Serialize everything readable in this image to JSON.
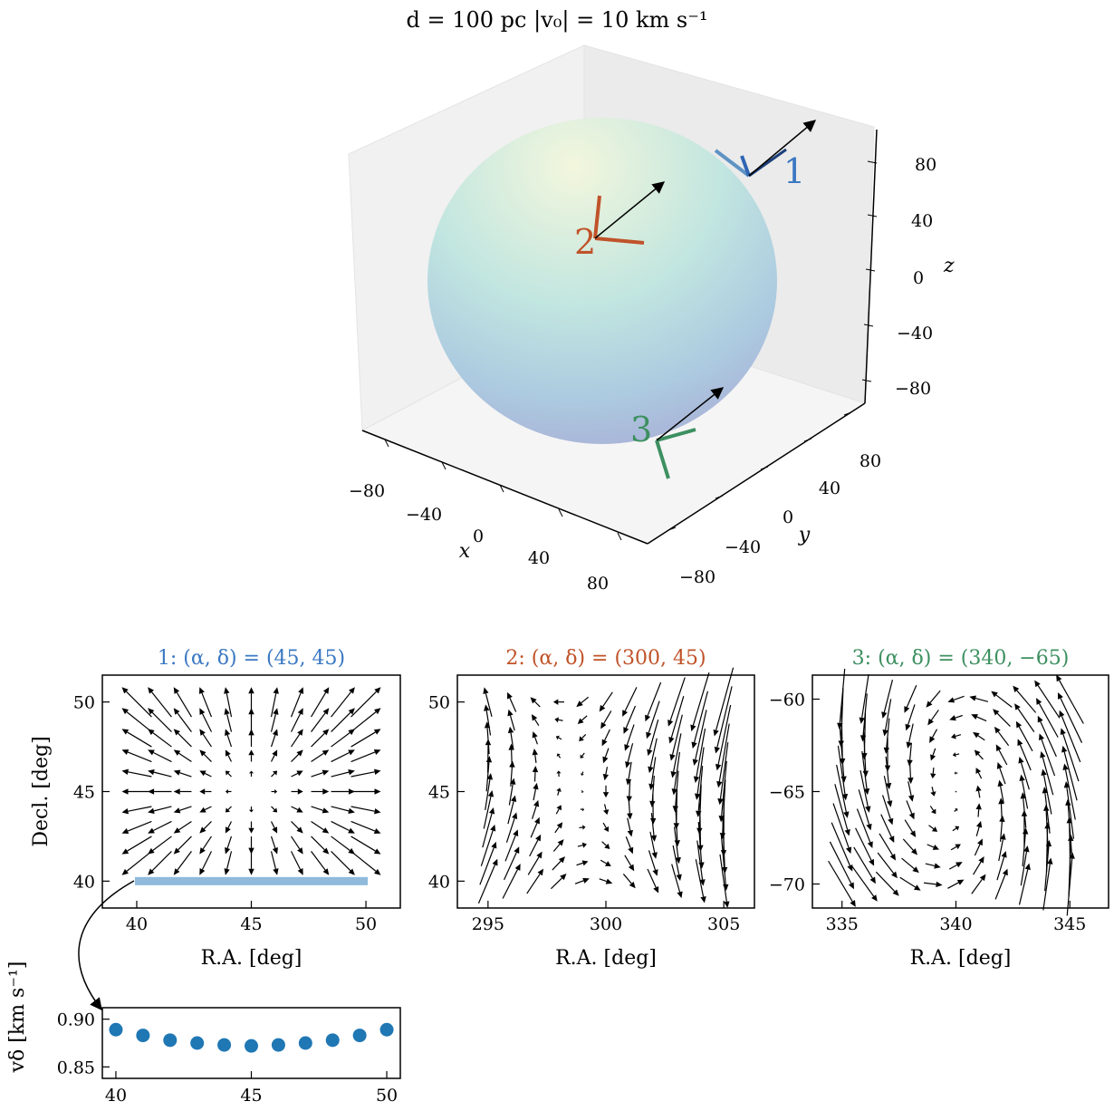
{
  "figure_title": "d = 100 pc |v₀| = 10 km s⁻¹",
  "colors": {
    "p1": "#3b78c2",
    "p2": "#c0532a",
    "p3": "#3d9060",
    "highlight": "#8fbadb",
    "dots": "#1f77b4"
  },
  "panel3d": {
    "x_ticks": [
      "−80",
      "−40",
      "0",
      "40",
      "80"
    ],
    "y_ticks": [
      "−80",
      "−40",
      "0",
      "40",
      "80"
    ],
    "z_ticks": [
      "80",
      "40",
      "0",
      "−40",
      "−80"
    ],
    "xlabel": "x",
    "ylabel": "y",
    "zlabel": "z",
    "points": [
      "1",
      "2",
      "3"
    ]
  },
  "chart_data": [
    {
      "type": "quiver",
      "title": "1: (α, δ) = (45, 45)",
      "xlabel": "R.A. [deg]",
      "ylabel": "Decl. [deg]",
      "xlim": [
        38.5,
        51.5
      ],
      "ylim": [
        38.5,
        51.5
      ],
      "xticks": [
        "40",
        "45",
        "50"
      ],
      "yticks": [
        "40",
        "45",
        "50"
      ],
      "grid_x": [
        40,
        41,
        42,
        43,
        44,
        45,
        46,
        47,
        48,
        49,
        50
      ],
      "grid_y": [
        41,
        42,
        43,
        44,
        45,
        46,
        47,
        48,
        49,
        50
      ],
      "center": [
        45,
        45
      ],
      "field": "radial",
      "gain": 0.26,
      "bias": [
        0,
        0.12
      ]
    },
    {
      "type": "quiver",
      "title": "2: (α, δ) = (300, 45)",
      "xlabel": "R.A. [deg]",
      "ylabel": "",
      "xlim": [
        293.7,
        306.3
      ],
      "ylim": [
        38.5,
        51.5
      ],
      "xticks": [
        "295",
        "300",
        "305"
      ],
      "yticks": [
        "40",
        "45",
        "50"
      ],
      "grid_x": [
        295,
        296,
        297,
        298,
        299,
        300,
        301,
        302,
        303,
        304,
        305
      ],
      "grid_y": [
        40,
        41,
        42,
        43,
        44,
        45,
        46,
        47,
        48,
        49,
        50
      ],
      "center": [
        300,
        45
      ],
      "field": "shear",
      "gain": 0.32,
      "bias": [
        0,
        0
      ]
    },
    {
      "type": "quiver",
      "title": "3: (α, δ) = (340, −65)",
      "xlabel": "R.A. [deg]",
      "ylabel": "",
      "xlim": [
        333.7,
        346.7
      ],
      "ylim": [
        -71.3,
        -58.7
      ],
      "xticks": [
        "335",
        "340",
        "345"
      ],
      "yticks": [
        "−60",
        "−65",
        "−70"
      ],
      "grid_x": [
        335,
        336,
        337,
        338,
        339,
        340,
        341,
        342,
        343,
        344,
        345
      ],
      "grid_y": [
        -70,
        -69,
        -68,
        -67,
        -66,
        -65,
        -64,
        -63,
        -62,
        -61,
        -60
      ],
      "center": [
        340,
        -65
      ],
      "field": "shear3",
      "gain": 0.32,
      "bias": [
        0,
        0
      ]
    },
    {
      "type": "scatter",
      "title": "",
      "xlabel": "",
      "ylabel": "vδ [km s⁻¹]",
      "xlim": [
        39.5,
        50.5
      ],
      "ylim": [
        0.838,
        0.912
      ],
      "xticks": [
        "40",
        "45",
        "50"
      ],
      "yticks": [
        "0.90",
        "0.85"
      ],
      "x": [
        40,
        41,
        42,
        43,
        44,
        45,
        46,
        47,
        48,
        49,
        50
      ],
      "y": [
        0.889,
        0.883,
        0.878,
        0.875,
        0.873,
        0.872,
        0.873,
        0.875,
        0.878,
        0.883,
        0.889
      ]
    }
  ]
}
